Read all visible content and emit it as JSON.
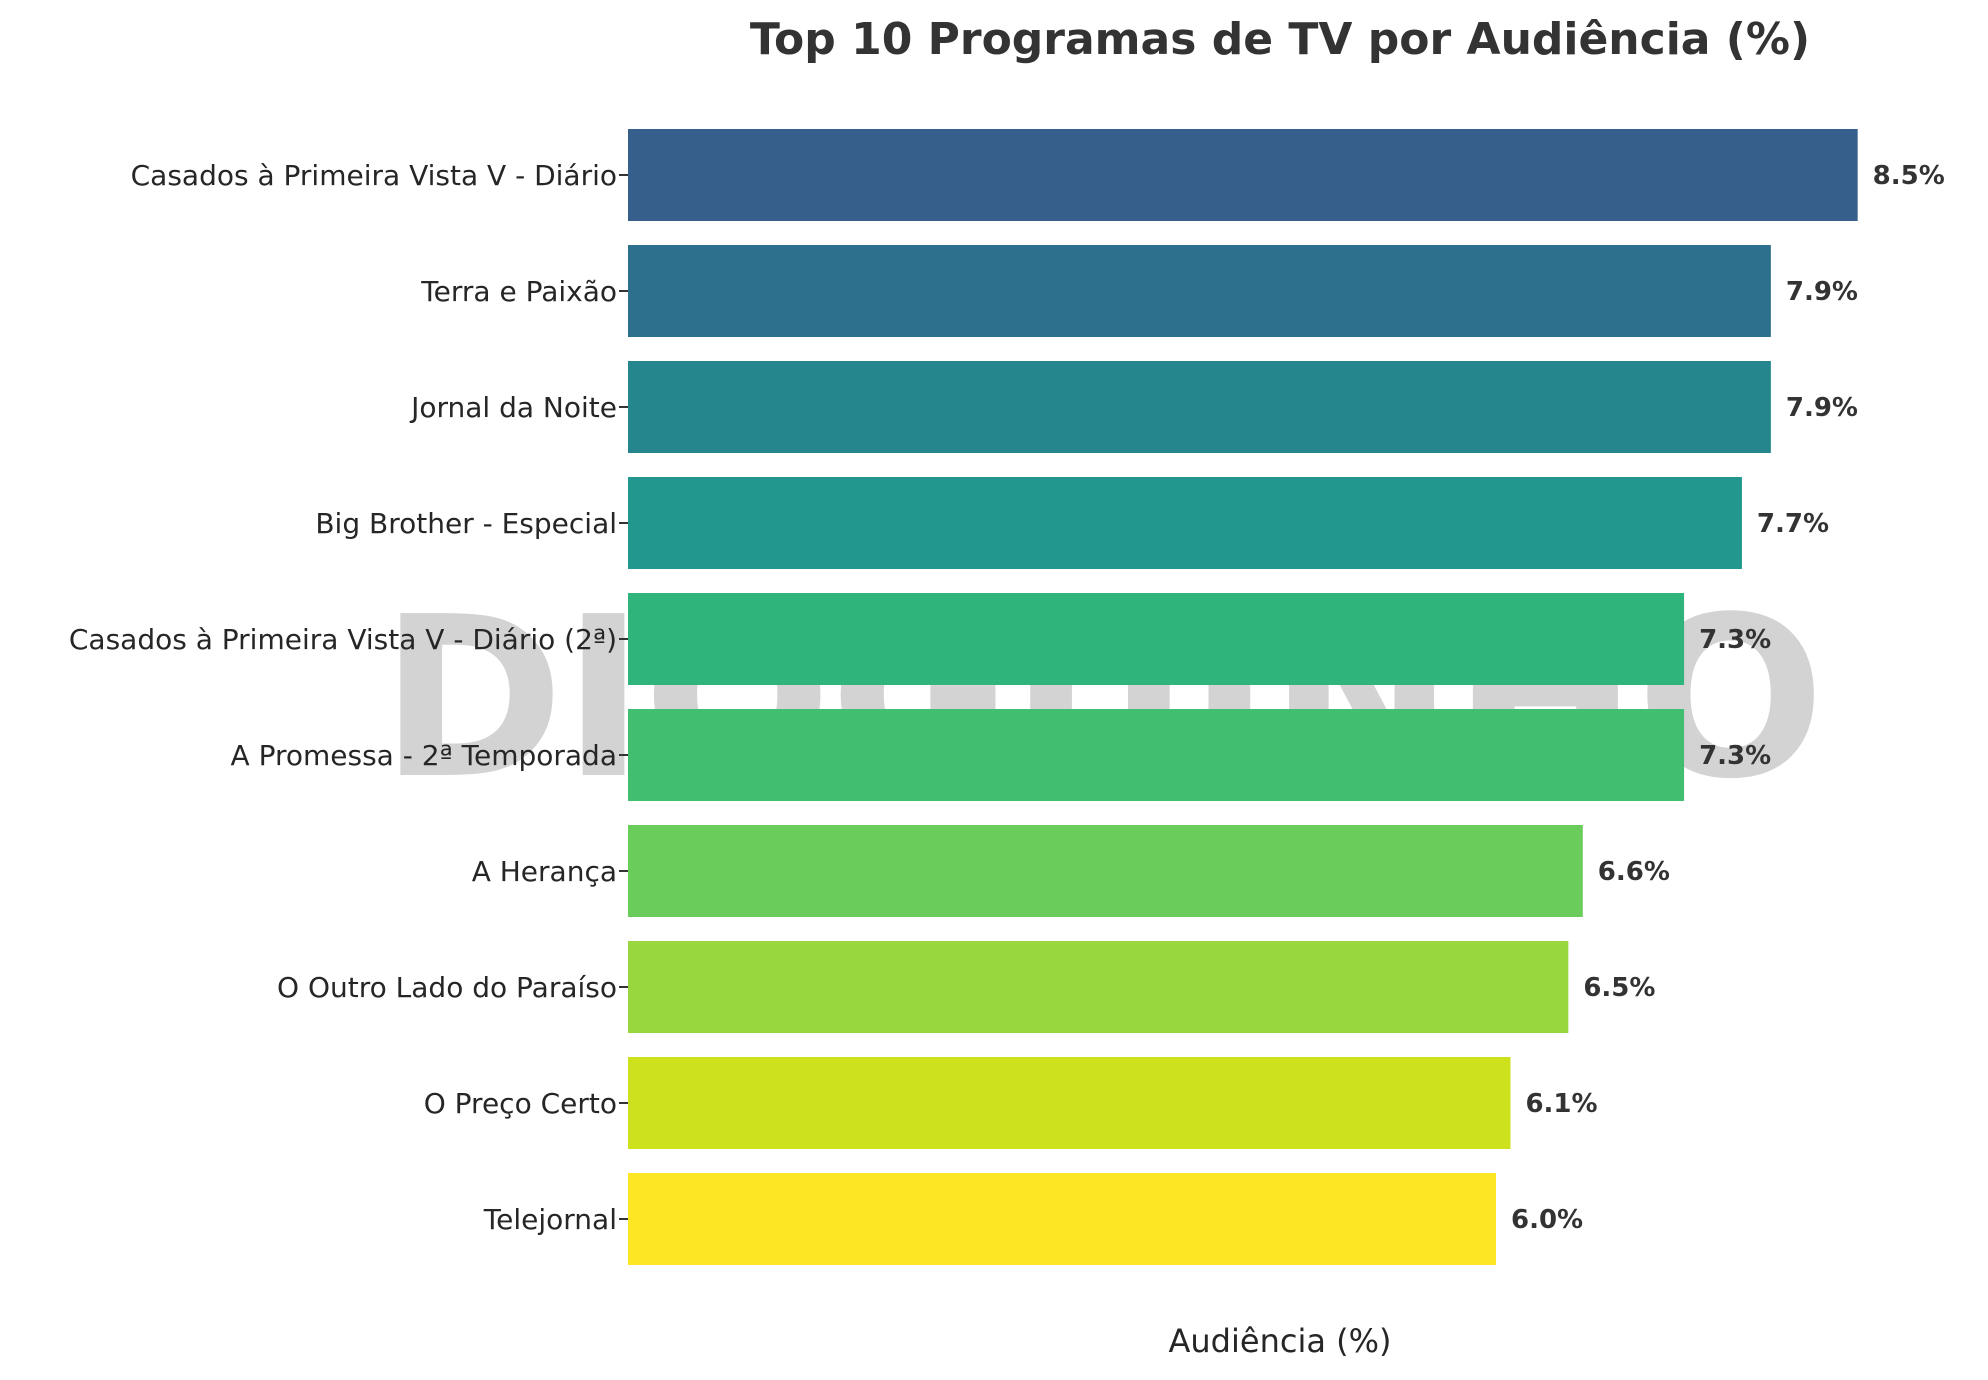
{
  "chart_data": {
    "type": "bar",
    "orientation": "horizontal",
    "title": "Top 10 Programas de TV por Audiência (%)",
    "xlabel": "Audiência (%)",
    "ylabel": "",
    "categories": [
      "Casados à Primeira Vista V - Diário",
      "Terra e Paixão",
      "Jornal da Noite",
      "Big Brother - Especial",
      "Casados à Primeira Vista V - Diário (2ª)",
      "A Promessa - 2ª Temporada",
      "A Herança",
      "O Outro Lado do Paraíso",
      "O Preço Certo",
      "Telejornal"
    ],
    "values": [
      8.5,
      7.9,
      7.9,
      7.7,
      7.3,
      7.3,
      6.6,
      6.5,
      6.1,
      6.0
    ],
    "value_labels": [
      "8.5%",
      "7.9%",
      "7.9%",
      "7.7%",
      "7.3%",
      "7.3%",
      "6.6%",
      "6.5%",
      "6.1%",
      "6.0%"
    ],
    "colors": [
      "#365f8c",
      "#2d708e",
      "#25868e",
      "#21978d",
      "#2fb47c",
      "#42be71",
      "#6acd5b",
      "#98d83e",
      "#cde11d",
      "#fde725"
    ],
    "xlim": [
      0,
      9.0
    ],
    "grid": false,
    "legend": "none"
  },
  "watermark": "DIOGUINHO"
}
